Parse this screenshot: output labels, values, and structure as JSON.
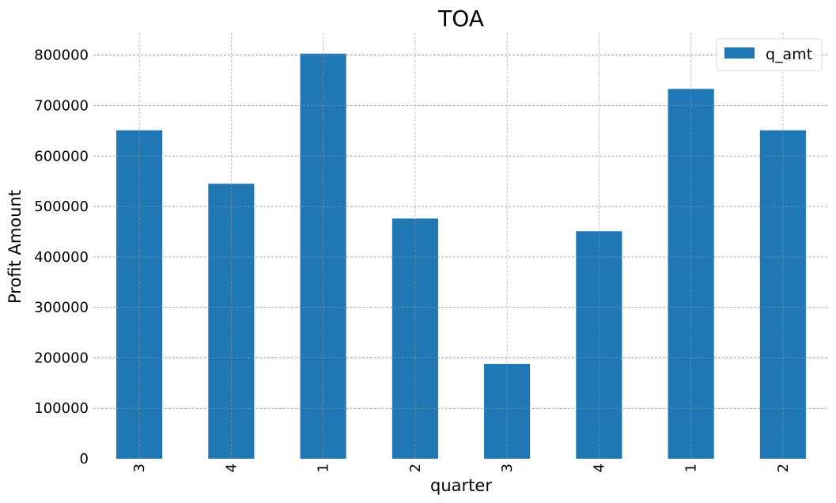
{
  "chart_data": {
    "type": "bar",
    "title": "TOA",
    "xlabel": "quarter",
    "ylabel": "Profit Amount",
    "categories": [
      "3",
      "4",
      "1",
      "2",
      "3",
      "4",
      "1",
      "2"
    ],
    "series": [
      {
        "name": "q_amt",
        "values": [
          651000,
          545000,
          803000,
          476000,
          188000,
          451000,
          733000,
          651000
        ]
      }
    ],
    "ylim": [
      0,
      845000
    ],
    "yticks": [
      0,
      100000,
      200000,
      300000,
      400000,
      500000,
      600000,
      700000,
      800000
    ],
    "ytick_labels": [
      "0",
      "100000",
      "200000",
      "300000",
      "400000",
      "500000",
      "600000",
      "700000",
      "800000"
    ],
    "grid": true,
    "legend_position": "top-right",
    "bar_color": "#1f77b4",
    "grid_color": "#999999"
  }
}
